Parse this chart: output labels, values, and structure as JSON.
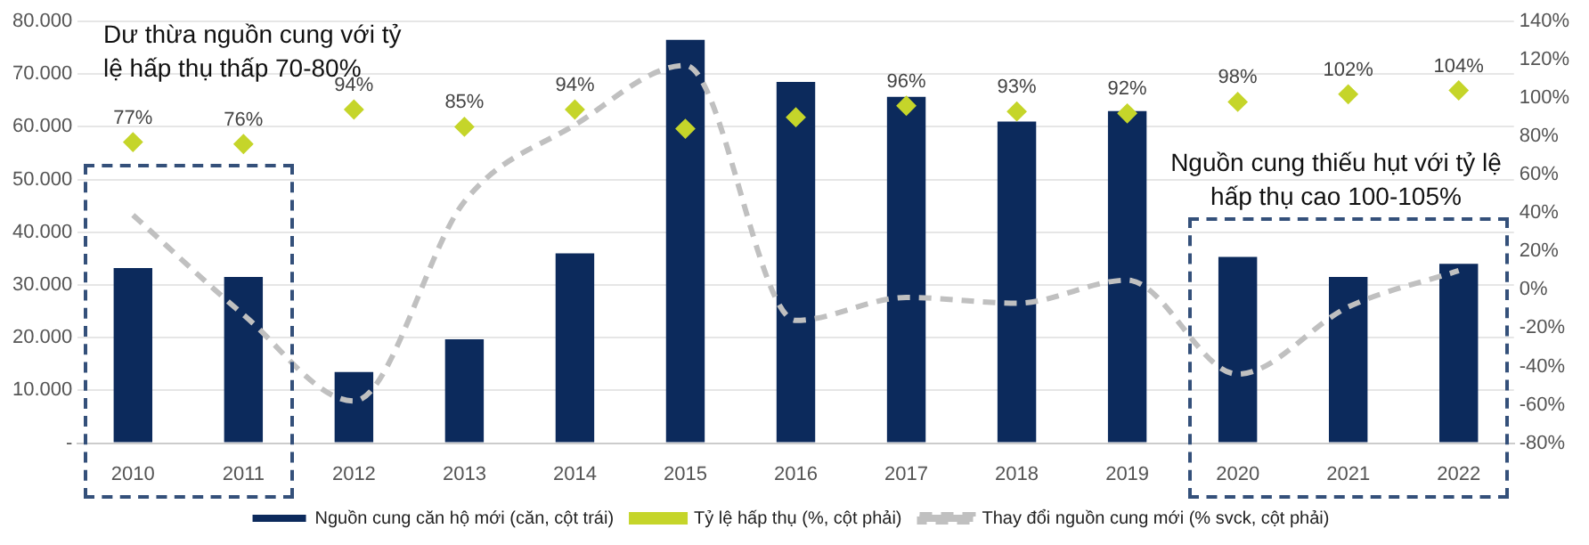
{
  "chart_data": {
    "type": "bar",
    "categories": [
      "2010",
      "2011",
      "2012",
      "2013",
      "2014",
      "2015",
      "2016",
      "2017",
      "2018",
      "2019",
      "2020",
      "2021",
      "2022"
    ],
    "series": [
      {
        "name": "Nguồn cung căn hộ mới (căn, cột trái)",
        "color": "#0c2a5c",
        "values": [
          33200,
          31500,
          13500,
          19700,
          36000,
          76500,
          68500,
          65700,
          61000,
          63000,
          35300,
          31500,
          34000
        ]
      },
      {
        "name": "Tỷ lệ hấp thụ (%, cột phải)",
        "type": "scatter",
        "axis": "y2",
        "color": "#c5d52a",
        "marker": "diamond",
        "values": [
          77,
          76,
          94,
          85,
          94,
          84,
          90,
          96,
          93,
          92,
          98,
          102,
          104
        ],
        "value_labels": [
          "77%",
          "76%",
          "94%",
          "85%",
          "94%",
          null,
          null,
          "96%",
          "93%",
          "92%",
          "98%",
          "102%",
          "104%"
        ]
      },
      {
        "name": "Thay đổi nguồn cung mới (% svck, cột phải)",
        "type": "line",
        "axis": "y2",
        "color": "#c0c0c0",
        "line_style": "dashed",
        "marker": "none",
        "values": [
          39,
          -13,
          -58,
          46,
          86,
          117,
          -16,
          -4,
          -7,
          5,
          -44,
          -9,
          10
        ]
      }
    ],
    "ylim": [
      0,
      80000
    ],
    "yticks": [
      {
        "value": 0,
        "label": "-"
      },
      {
        "value": 10000,
        "label": "10.000"
      },
      {
        "value": 20000,
        "label": "20.000"
      },
      {
        "value": 30000,
        "label": "30.000"
      },
      {
        "value": 40000,
        "label": "40.000"
      },
      {
        "value": 50000,
        "label": "50.000"
      },
      {
        "value": 60000,
        "label": "60.000"
      },
      {
        "value": 70000,
        "label": "70.000"
      },
      {
        "value": 80000,
        "label": "80.000"
      }
    ],
    "y2lim": [
      -80,
      140
    ],
    "y2ticks": [
      {
        "value": -80,
        "label": "-80%"
      },
      {
        "value": -60,
        "label": "-60%"
      },
      {
        "value": -40,
        "label": "-40%"
      },
      {
        "value": -20,
        "label": "-20%"
      },
      {
        "value": 0,
        "label": "0%"
      },
      {
        "value": 20,
        "label": "20%"
      },
      {
        "value": 40,
        "label": "40%"
      },
      {
        "value": 60,
        "label": "60%"
      },
      {
        "value": 80,
        "label": "80%"
      },
      {
        "value": 100,
        "label": "100%"
      },
      {
        "value": 120,
        "label": "120%"
      },
      {
        "value": 140,
        "label": "140%"
      }
    ],
    "grid": "y",
    "legend": "bottom",
    "annotations": [
      "Dư thừa nguồn cung với tỷ lệ hấp thụ thấp 70-80%",
      "Nguồn cung thiếu hụt với tỷ lệ hấp thụ cao 100-105%"
    ]
  }
}
